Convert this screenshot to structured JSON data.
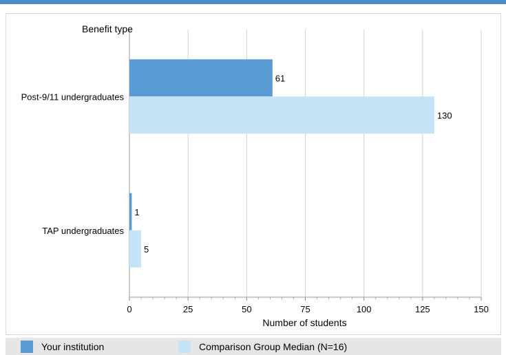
{
  "chart_data": {
    "type": "bar",
    "orientation": "horizontal",
    "title": "",
    "ylabel": "Benefit type",
    "xlabel": "Number of students",
    "categories": [
      "Post-9/11 undergraduates",
      "TAP undergraduates"
    ],
    "series": [
      {
        "name": "Your institution",
        "values": [
          61,
          1
        ],
        "color": "#5b9bd5"
      },
      {
        "name": "Comparison Group Median (N=16)",
        "values": [
          130,
          5
        ],
        "color": "#c5e3f7"
      }
    ],
    "xlim": [
      0,
      150
    ],
    "xticks": [
      0,
      25,
      50,
      75,
      100,
      125,
      150
    ],
    "grid": "vertical",
    "legend": "bottom"
  },
  "colors": {
    "accent_bar": "#4f8dc9",
    "grid": "#d0d0d0",
    "legend_bg": "#e6e6e6"
  }
}
